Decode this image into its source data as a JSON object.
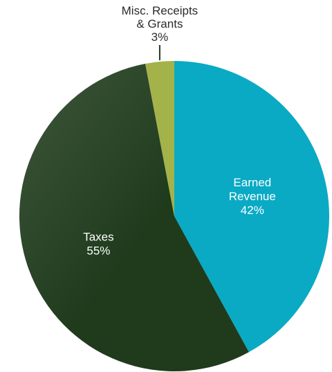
{
  "chart_data": {
    "type": "pie",
    "start_angle_deg": 0,
    "direction": "clockwise",
    "slices": [
      {
        "label": [
          "Earned",
          "Revenue"
        ],
        "value": 42,
        "percent_label": "42%",
        "color": "#0aaac4",
        "label_position": "inside"
      },
      {
        "label": [
          "Taxes"
        ],
        "value": 55,
        "percent_label": "55%",
        "color": "#1f3b1c",
        "label_position": "inside"
      },
      {
        "label": [
          "Misc. Receipts",
          "& Grants"
        ],
        "value": 3,
        "percent_label": "3%",
        "color": "#a4b24a",
        "label_position": "outside-top"
      }
    ]
  }
}
